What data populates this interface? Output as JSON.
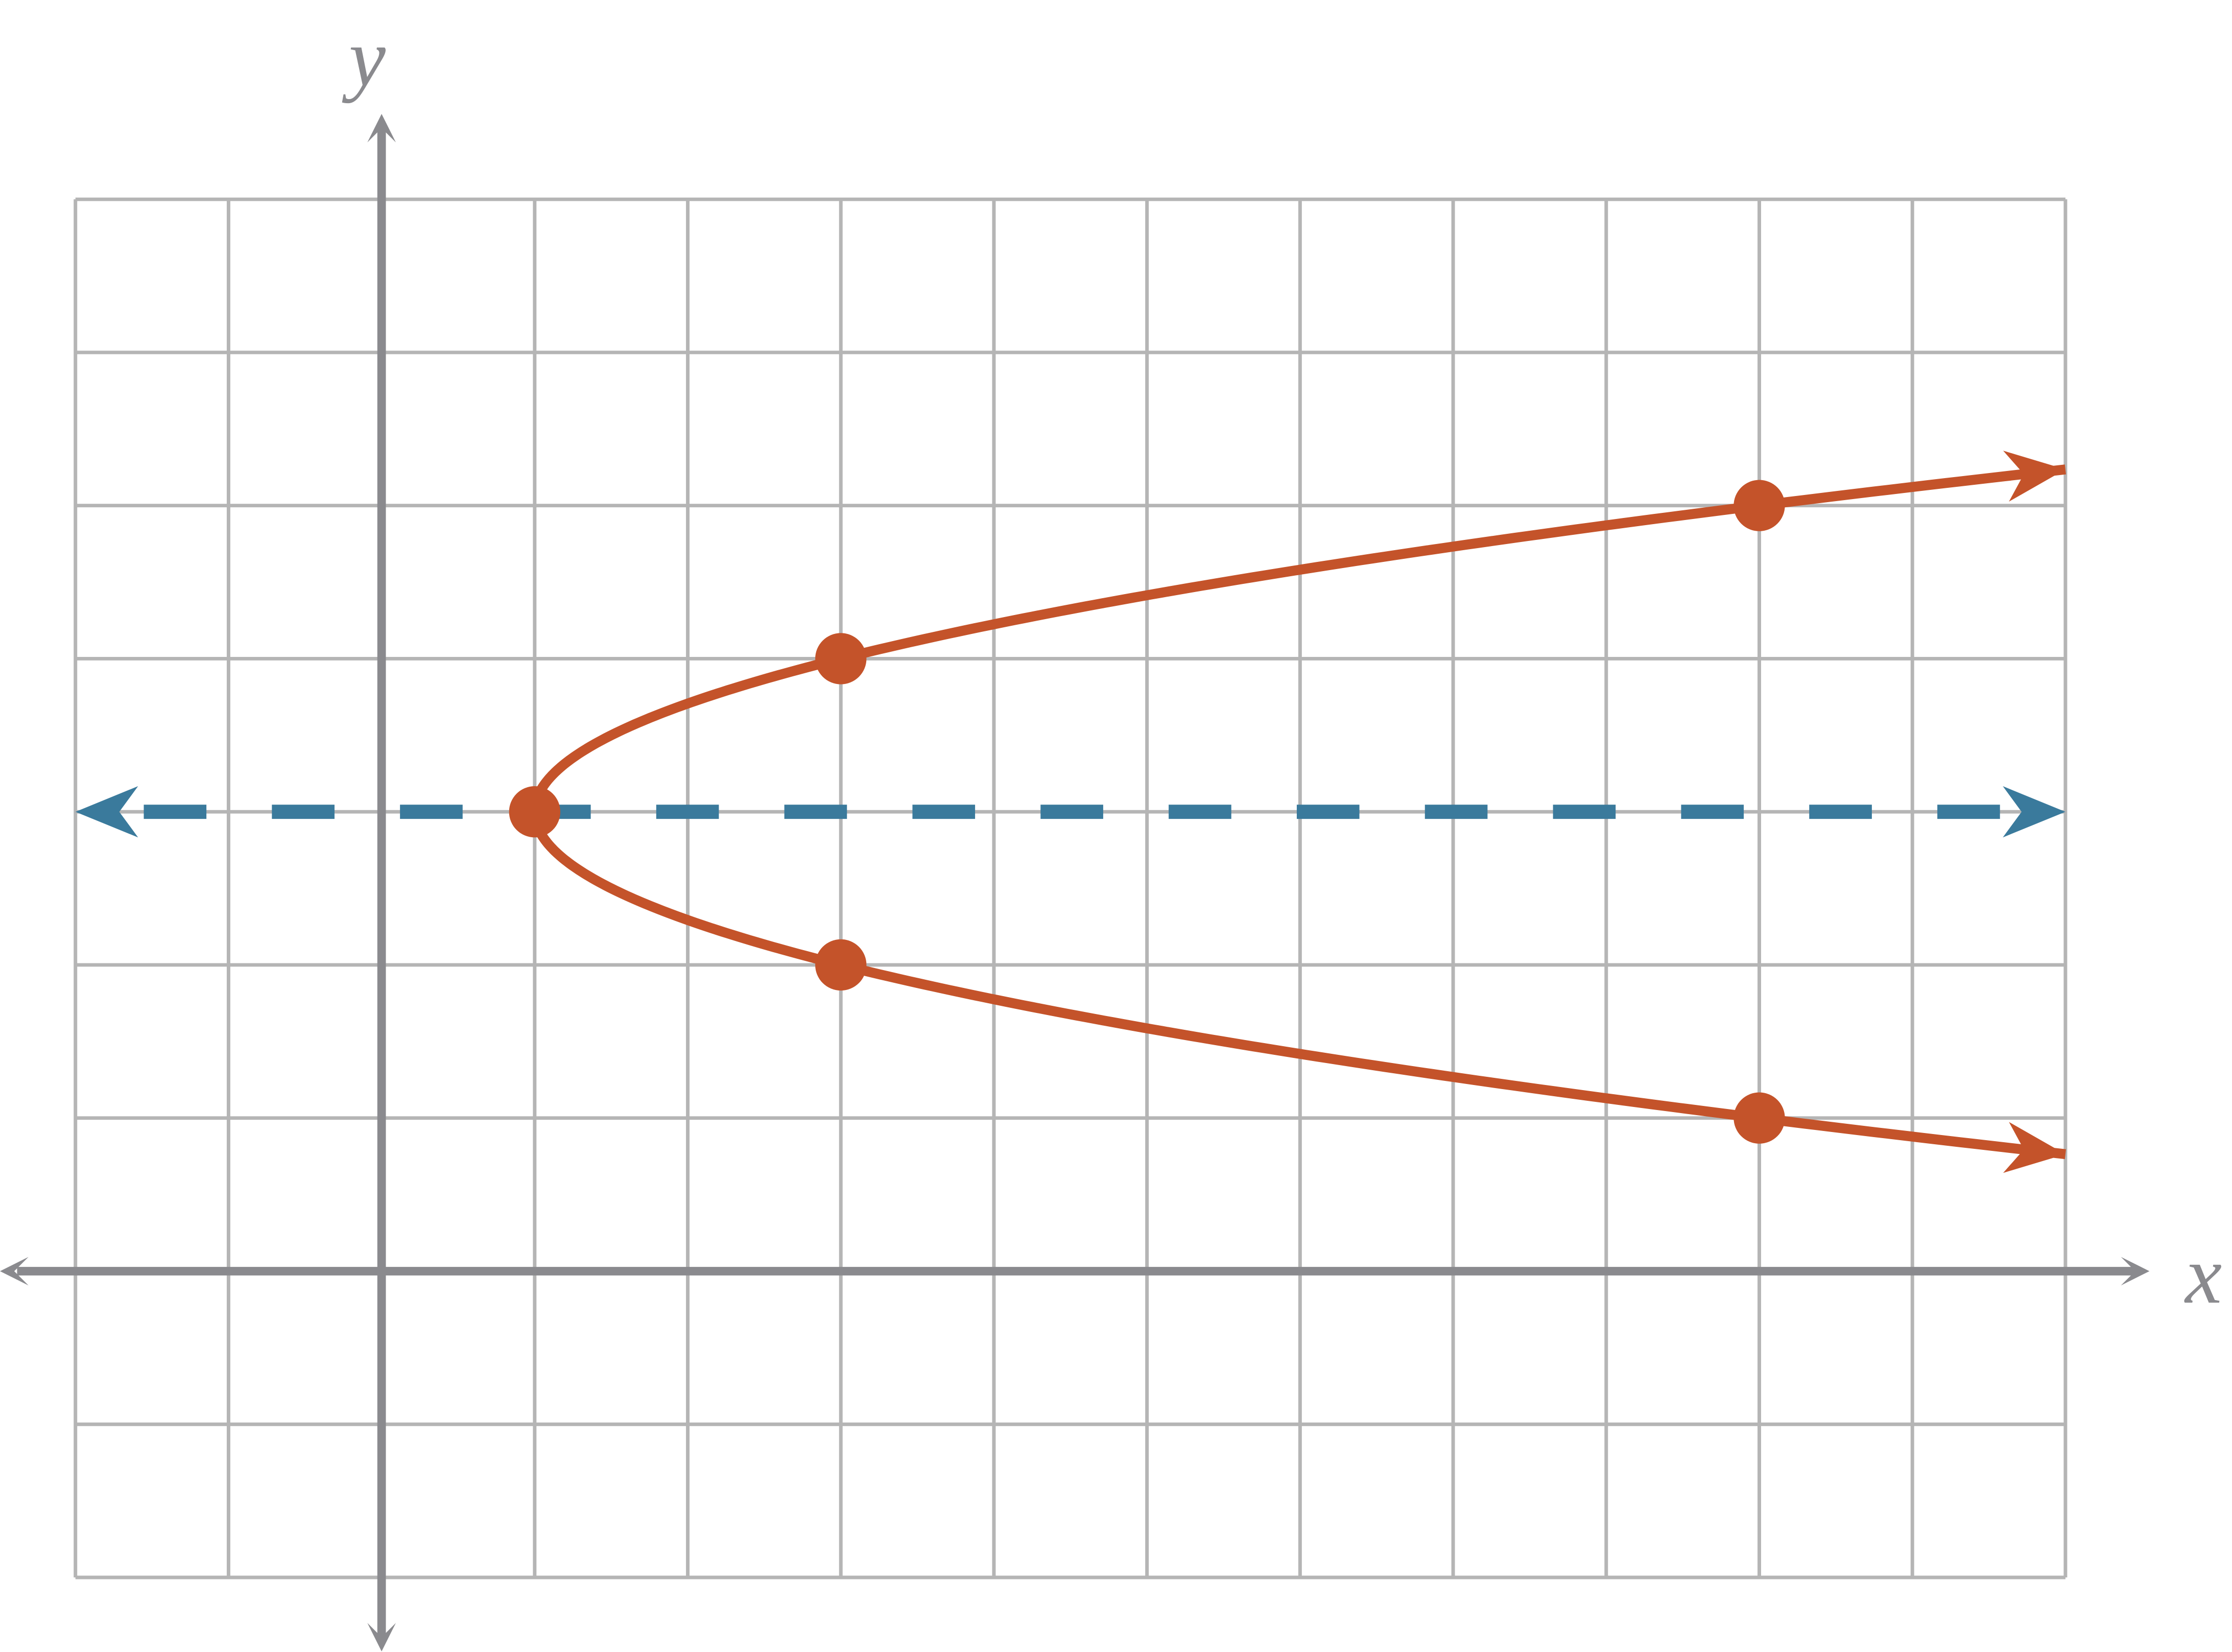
{
  "chart_data": {
    "type": "parabola",
    "x_label": "x",
    "y_label": "y",
    "xlim": [
      -2,
      11
    ],
    "ylim": [
      -2,
      7
    ],
    "xticks": [
      -2,
      -1,
      0,
      1,
      2,
      3,
      4,
      5,
      6,
      7,
      8,
      9,
      10,
      11
    ],
    "yticks": [
      -2,
      -1,
      0,
      1,
      2,
      3,
      4,
      5,
      6,
      7
    ],
    "grid": true,
    "points": {
      "x": [
        1,
        3,
        3,
        9,
        9
      ],
      "y": [
        3,
        4,
        2,
        5,
        1
      ]
    },
    "color": "#c4532a",
    "axis_of_symmetry_color": "#3a7a9c",
    "axis_color": "#8a8a8e",
    "grid_color": "#b5b5b5"
  }
}
